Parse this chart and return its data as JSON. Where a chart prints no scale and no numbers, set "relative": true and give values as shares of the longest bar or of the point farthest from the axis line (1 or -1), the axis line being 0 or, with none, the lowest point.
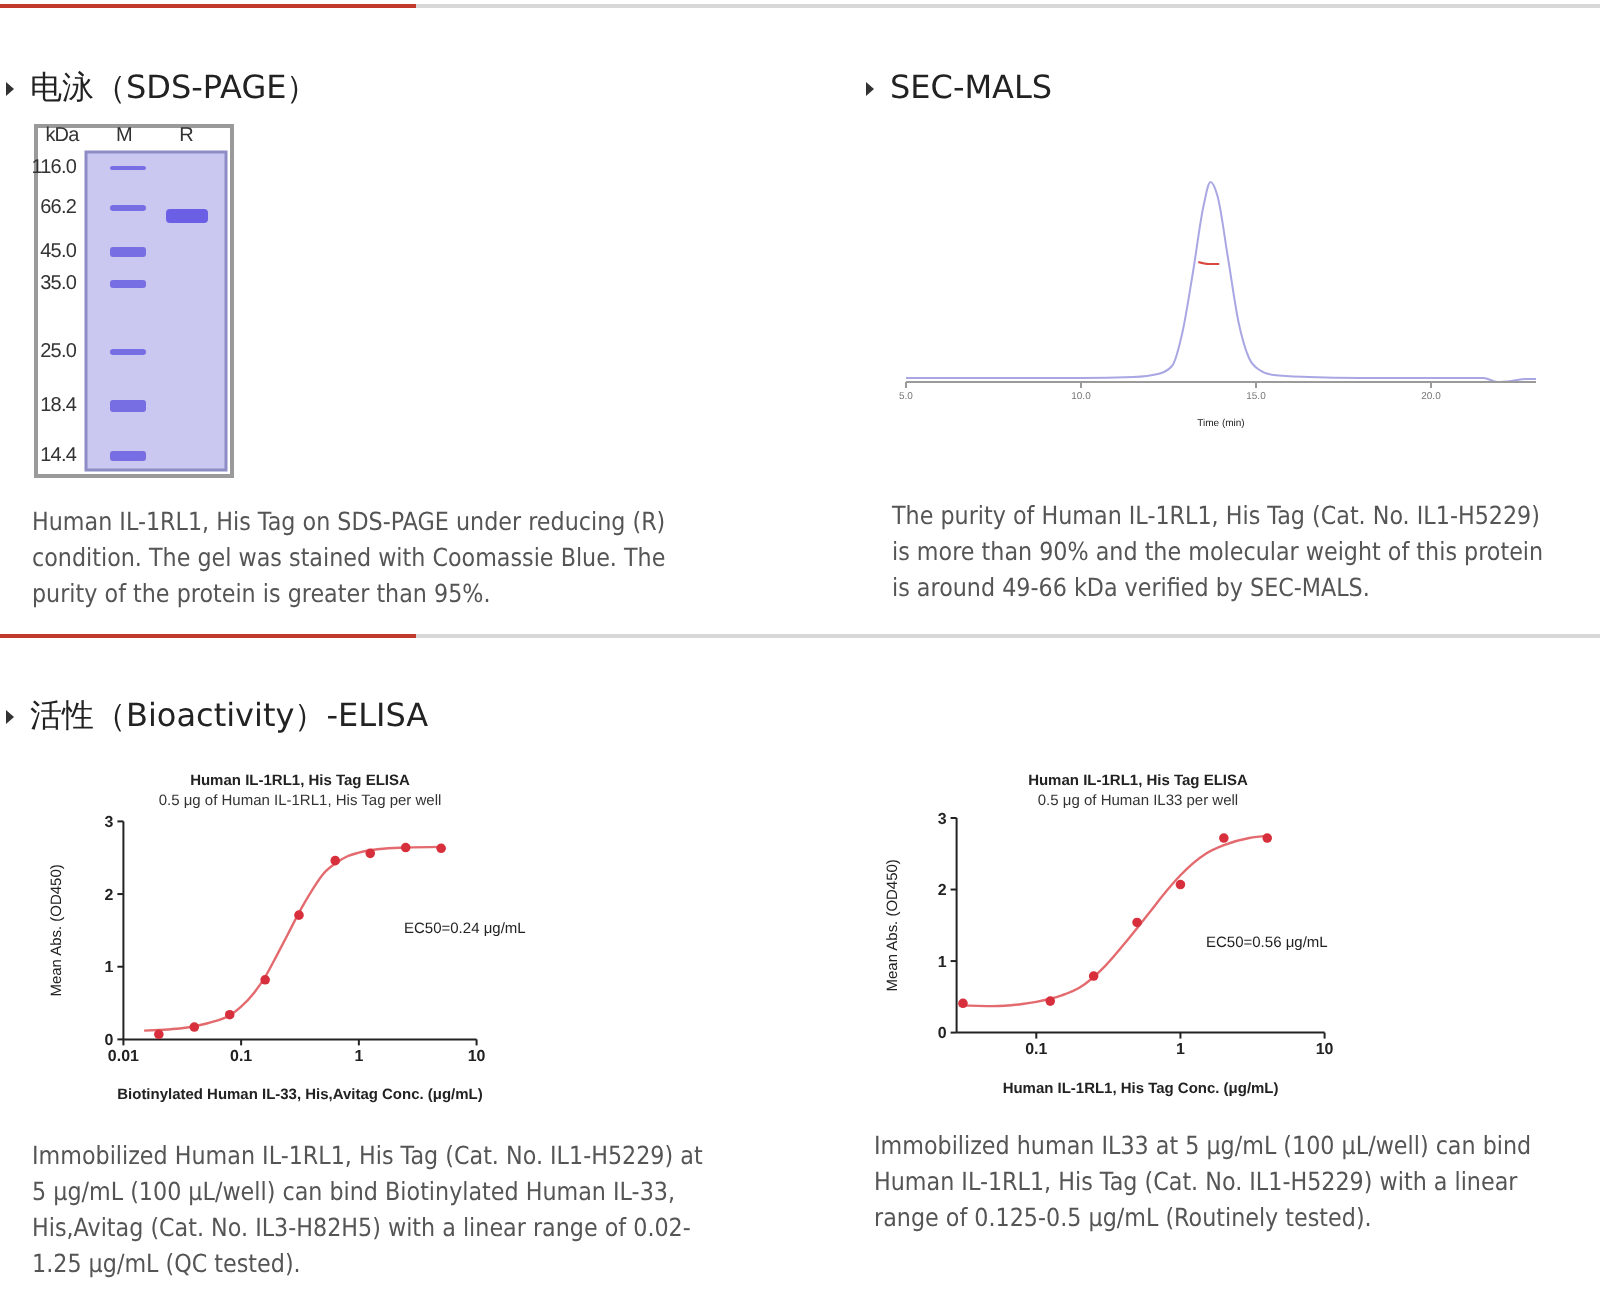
{
  "chart_data": [
    {
      "type": "other",
      "title": "电泳（SDS-PAGE）",
      "annotations": [
        "kDa",
        "M",
        "R",
        "116.0",
        "66.2",
        "45.0",
        "35.0",
        "25.0",
        "18.4",
        "14.4",
        "Human IL-1RL1, His Tag on SDS-PAGE under reducing (R) condition. The gel was stained with Coomassie Blue. The purity of the protein is greater than 95%."
      ]
    },
    {
      "type": "line",
      "title": "SEC-MALS",
      "relative": true,
      "xlabel": "Time (min)",
      "xlim": [
        5,
        23
      ],
      "xticks": [
        {
          "value": 5,
          "label": "5.0"
        },
        {
          "value": 10,
          "label": "10.0"
        },
        {
          "value": 15,
          "label": "15.0"
        },
        {
          "value": 20,
          "label": "20.0"
        }
      ],
      "tick_labels": "x",
      "series": [
        {
          "color": "#a9a7e3",
          "x": [
            5,
            8,
            10,
            11.5,
            12.2,
            12.6,
            12.9,
            13.2,
            13.5,
            13.7,
            13.9,
            14.2,
            14.5,
            14.8,
            15.1,
            15.5,
            16.5,
            18,
            20,
            21.5,
            21.9,
            22.3,
            22.7,
            23
          ],
          "values": [
            0.02,
            0.02,
            0.02,
            0.025,
            0.04,
            0.08,
            0.25,
            0.55,
            0.88,
            1,
            0.93,
            0.62,
            0.3,
            0.12,
            0.06,
            0.035,
            0.025,
            0.02,
            0.02,
            0.02,
            0.0,
            0.005,
            0.015,
            0.015
          ]
        },
        {
          "color": "#d9473f",
          "x": [
            13.35,
            13.65,
            13.95
          ],
          "values": [
            0.6,
            0.59,
            0.59
          ]
        }
      ],
      "annotations": [
        "The purity of Human IL-1RL1, His Tag (Cat. No. IL1-H5229) is more than 90% and the molecular weight of this protein is around 49-66 kDa verified by SEC-MALS."
      ]
    },
    {
      "type": "scatter",
      "title": "Human IL-1RL1, His Tag ELISA",
      "subtitle": "0.5 μg of Human IL-1RL1, His Tag per well",
      "xlabel": "Biotinylated Human IL-33, His,Avitag Conc. (μg/mL)",
      "ylabel": "Mean Abs. (OD450)",
      "log": "x",
      "xlim": [
        0.01,
        10
      ],
      "xticks": [
        0.01,
        0.1,
        1,
        10
      ],
      "ylim": [
        0,
        3
      ],
      "yticks": [
        0,
        1,
        2,
        3
      ],
      "series": [
        {
          "type": "scatter",
          "marker": "circle",
          "color": "#d7303c",
          "x": [
            0.02,
            0.04,
            0.08,
            0.16,
            0.31,
            0.63,
            1.25,
            2.5,
            5
          ],
          "values": [
            0.07,
            0.17,
            0.34,
            0.82,
            1.71,
            2.46,
            2.56,
            2.64,
            2.63
          ]
        },
        {
          "type": "line",
          "marker": "none",
          "color": "#e36a6e",
          "x": [
            0.015,
            0.02,
            0.03,
            0.04,
            0.06,
            0.08,
            0.1,
            0.13,
            0.16,
            0.2,
            0.25,
            0.3,
            0.4,
            0.5,
            0.63,
            0.8,
            1,
            1.5,
            2.5,
            5
          ],
          "values": [
            0.12,
            0.13,
            0.15,
            0.18,
            0.25,
            0.33,
            0.45,
            0.65,
            0.86,
            1.15,
            1.45,
            1.7,
            2.05,
            2.28,
            2.42,
            2.52,
            2.57,
            2.62,
            2.64,
            2.65
          ]
        }
      ],
      "annotations": [
        "活性（Bioactivity）-ELISA",
        "EC50=0.24 μg/mL",
        "Immobilized Human IL-1RL1, His Tag (Cat. No. IL1-H5229) at 5 μg/mL (100 μL/well) can bind Biotinylated Human IL-33, His,Avitag (Cat. No. IL3-H82H5) with a linear range of 0.02-1.25 μg/mL (QC tested)."
      ]
    },
    {
      "type": "scatter",
      "title": "Human IL-1RL1, His Tag ELISA",
      "subtitle": "0.5 μg of Human IL33 per well",
      "xlabel": "Human IL-1RL1, His Tag Conc. (μg/mL)",
      "ylabel": "Mean Abs. (OD450)",
      "log": "x",
      "xlim": [
        0.028,
        10
      ],
      "xticks": [
        0.1,
        1,
        10
      ],
      "ylim": [
        0,
        3
      ],
      "yticks": [
        0,
        1,
        2,
        3
      ],
      "series": [
        {
          "type": "scatter",
          "marker": "circle",
          "color": "#d7303c",
          "x": [
            0.031,
            0.125,
            0.25,
            0.5,
            1,
            2,
            4
          ],
          "values": [
            0.41,
            0.44,
            0.79,
            1.54,
            2.07,
            2.72,
            2.72
          ]
        },
        {
          "type": "line",
          "marker": "none",
          "color": "#e36a6e",
          "x": [
            0.029,
            0.05,
            0.08,
            0.1,
            0.15,
            0.2,
            0.3,
            0.4,
            0.5,
            0.6,
            0.8,
            1,
            1.5,
            2,
            3,
            4
          ],
          "values": [
            0.38,
            0.37,
            0.4,
            0.43,
            0.52,
            0.63,
            0.93,
            1.22,
            1.46,
            1.66,
            1.98,
            2.2,
            2.5,
            2.62,
            2.72,
            2.75
          ]
        }
      ],
      "annotations": [
        "EC50=0.56 μg/mL",
        "Immobilized human IL33 at 5 μg/mL (100 μL/well) can bind Human IL-1RL1, His Tag (Cat. No. IL1-H5229) with a linear range of 0.125-0.5 μg/mL (Routinely tested)."
      ]
    }
  ]
}
